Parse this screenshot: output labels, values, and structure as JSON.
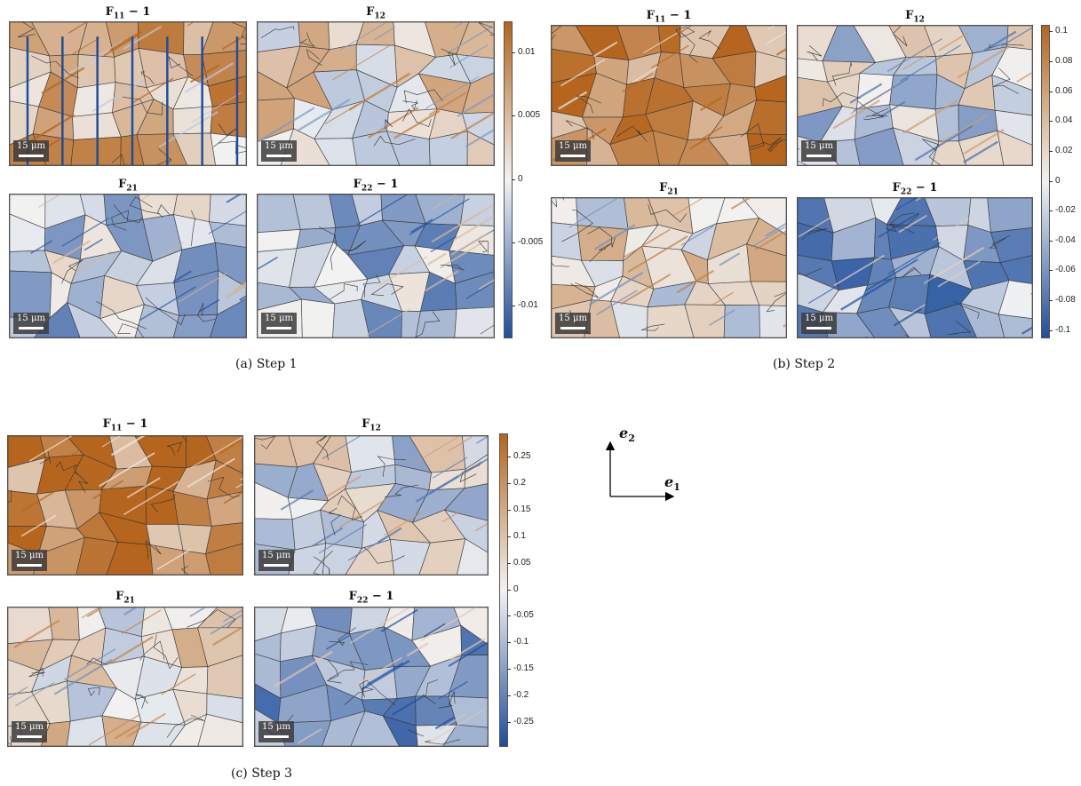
{
  "figure": {
    "steps": [
      {
        "caption": "(a) Step 1",
        "panels": [
          {
            "label_main": "F",
            "label_sub": "11",
            "label_suffix": " − 1",
            "icon": "strain-map-orange"
          },
          {
            "label_main": "F",
            "label_sub": "12",
            "label_suffix": "",
            "icon": "strain-map-mixed"
          },
          {
            "label_main": "F",
            "label_sub": "21",
            "label_suffix": "",
            "icon": "strain-map-blue"
          },
          {
            "label_main": "F",
            "label_sub": "22",
            "label_suffix": " − 1",
            "icon": "strain-map-blue"
          }
        ],
        "colorbar_ticks": [
          "0.01",
          "0.005",
          "0",
          "-0.005",
          "-0.01"
        ],
        "colorbar_range": [
          -0.0125,
          0.0125
        ],
        "colorbar_tick_values": [
          0.01,
          0.005,
          0,
          -0.005,
          -0.01
        ]
      },
      {
        "caption": "(b) Step 2",
        "panels": [
          {
            "label_main": "F",
            "label_sub": "11",
            "label_suffix": " − 1",
            "icon": "strain-map-orange"
          },
          {
            "label_main": "F",
            "label_sub": "12",
            "label_suffix": "",
            "icon": "strain-map-mixed"
          },
          {
            "label_main": "F",
            "label_sub": "21",
            "label_suffix": "",
            "icon": "strain-map-mixed"
          },
          {
            "label_main": "F",
            "label_sub": "22",
            "label_suffix": " − 1",
            "icon": "strain-map-blue"
          }
        ],
        "colorbar_ticks": [
          "0.1",
          "0.08",
          "0.06",
          "0.04",
          "0.02",
          "0",
          "-0.02",
          "-0.04",
          "-0.06",
          "-0.08",
          "-0.1"
        ],
        "colorbar_range": [
          -0.105,
          0.105
        ],
        "colorbar_tick_values": [
          0.1,
          0.08,
          0.06,
          0.04,
          0.02,
          0,
          -0.02,
          -0.04,
          -0.06,
          -0.08,
          -0.1
        ]
      },
      {
        "caption": "(c) Step 3",
        "panels": [
          {
            "label_main": "F",
            "label_sub": "11",
            "label_suffix": " − 1",
            "icon": "strain-map-orange"
          },
          {
            "label_main": "F",
            "label_sub": "12",
            "label_suffix": "",
            "icon": "strain-map-mixed"
          },
          {
            "label_main": "F",
            "label_sub": "21",
            "label_suffix": "",
            "icon": "strain-map-mixed"
          },
          {
            "label_main": "F",
            "label_sub": "22",
            "label_suffix": " − 1",
            "icon": "strain-map-blue"
          }
        ],
        "colorbar_ticks": [
          "0.25",
          "0.2",
          "0.15",
          "0.1",
          "0.05",
          "0",
          "-0.05",
          "-0.1",
          "-0.15",
          "-0.2",
          "-0.25"
        ],
        "colorbar_range": [
          -0.295,
          0.295
        ],
        "colorbar_tick_values": [
          0.25,
          0.2,
          0.15,
          0.1,
          0.05,
          0,
          -0.05,
          -0.1,
          -0.15,
          -0.2,
          -0.25
        ]
      }
    ],
    "scale_bar": "15 μm",
    "axes": {
      "e1_main": "e",
      "e1_sub": "1",
      "e2_main": "e",
      "e2_sub": "2"
    },
    "colors": {
      "positive": "#b5651d",
      "neutral": "#f2f2f2",
      "negative": "#1f4e9c",
      "boundary": "#333333"
    }
  }
}
